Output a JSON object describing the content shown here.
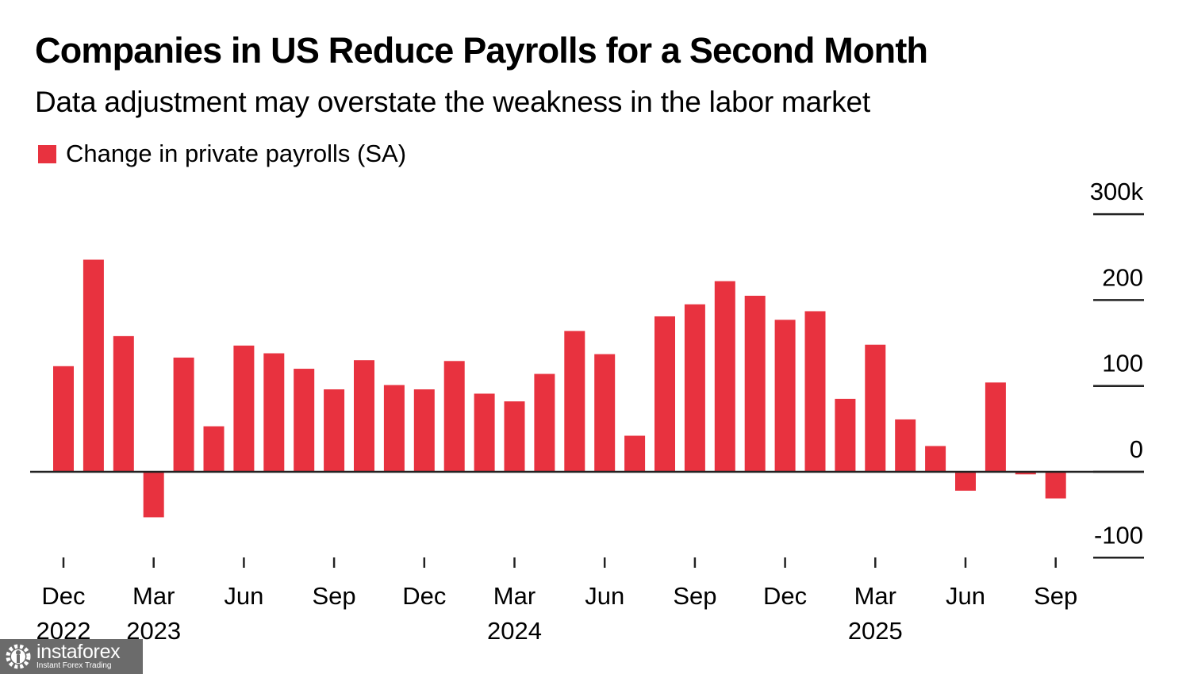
{
  "header": {
    "title": "Companies in US Reduce Payrolls for a Second Month",
    "subtitle": "Data adjustment may overstate the weakness in the labor market"
  },
  "watermark": {
    "brand": "instaforex",
    "tagline": "Instant Forex Trading"
  },
  "colors": {
    "bar": "#e8323f",
    "axis": "#222222",
    "text": "#000000"
  },
  "chart_data": {
    "type": "bar",
    "title": "Companies in US Reduce Payrolls for a Second Month",
    "subtitle": "Data adjustment may overstate the weakness in the labor market",
    "xlabel": "",
    "ylabel": "",
    "legend": {
      "entries": [
        "Change in private payrolls (SA)"
      ],
      "placement": "top-left"
    },
    "y_axis_side": "right",
    "ylim": [
      -100,
      300
    ],
    "yticks": [
      -100,
      0,
      100,
      200,
      300
    ],
    "ytick_labels": [
      "-100",
      "0",
      "100",
      "200",
      "300k"
    ],
    "grid": false,
    "categories": [
      "Dec 2022",
      "Jan 2023",
      "Feb 2023",
      "Mar 2023",
      "Apr 2023",
      "May 2023",
      "Jun 2023",
      "Jul 2023",
      "Aug 2023",
      "Sep 2023",
      "Oct 2023",
      "Nov 2023",
      "Dec 2023",
      "Jan 2024",
      "Feb 2024",
      "Mar 2024",
      "Apr 2024",
      "May 2024",
      "Jun 2024",
      "Jul 2024",
      "Aug 2024",
      "Sep 2024",
      "Oct 2024",
      "Nov 2024",
      "Dec 2024",
      "Jan 2025",
      "Feb 2025",
      "Mar 2025",
      "Apr 2025",
      "May 2025",
      "Jun 2025",
      "Jul 2025",
      "Aug 2025",
      "Sep 2025"
    ],
    "series": [
      {
        "name": "Change in private payrolls (SA)",
        "unit": "thousands",
        "values": [
          123,
          247,
          158,
          -53,
          133,
          53,
          147,
          138,
          120,
          96,
          130,
          101,
          96,
          129,
          91,
          82,
          114,
          164,
          137,
          42,
          181,
          195,
          222,
          205,
          177,
          187,
          85,
          148,
          61,
          30,
          -22,
          104,
          -3,
          -31
        ]
      }
    ],
    "xticks": [
      {
        "index": 0,
        "month": "Dec",
        "year": "2022"
      },
      {
        "index": 3,
        "month": "Mar",
        "year": "2023"
      },
      {
        "index": 6,
        "month": "Jun",
        "year": ""
      },
      {
        "index": 9,
        "month": "Sep",
        "year": ""
      },
      {
        "index": 12,
        "month": "Dec",
        "year": ""
      },
      {
        "index": 15,
        "month": "Mar",
        "year": "2024"
      },
      {
        "index": 18,
        "month": "Jun",
        "year": ""
      },
      {
        "index": 21,
        "month": "Sep",
        "year": ""
      },
      {
        "index": 24,
        "month": "Dec",
        "year": ""
      },
      {
        "index": 27,
        "month": "Mar",
        "year": "2025"
      },
      {
        "index": 30,
        "month": "Jun",
        "year": ""
      },
      {
        "index": 33,
        "month": "Sep",
        "year": ""
      }
    ]
  }
}
